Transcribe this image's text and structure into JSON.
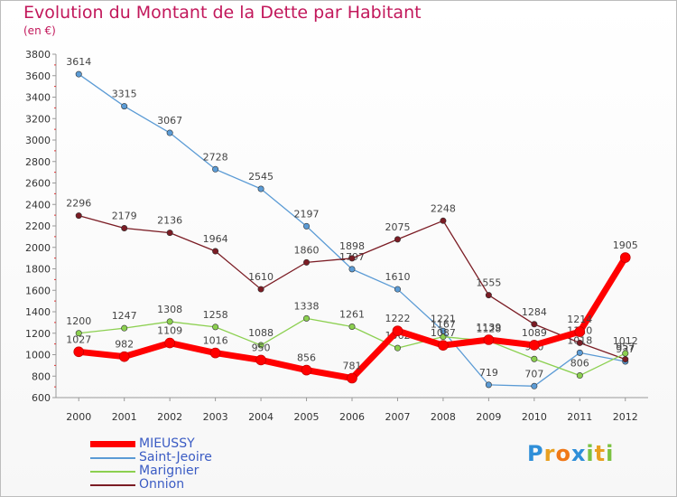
{
  "chart_data": {
    "type": "line",
    "title": "Evolution du Montant de la Dette par Habitant",
    "subtitle": "(en €)",
    "xlabel": "",
    "ylabel": "",
    "x": [
      "2000",
      "2001",
      "2002",
      "2003",
      "2004",
      "2005",
      "2006",
      "2007",
      "2008",
      "2009",
      "2010",
      "2011",
      "2012"
    ],
    "ylim": [
      600,
      3800
    ],
    "yticks": [
      600,
      800,
      1000,
      1200,
      1400,
      1600,
      1800,
      2000,
      2200,
      2400,
      2600,
      2800,
      3000,
      3200,
      3400,
      3600,
      3800
    ],
    "grid": false,
    "legend_position": "bottom-left",
    "series": [
      {
        "name": "Saint-Jeoire",
        "color": "#5b9bd5",
        "values": [
          3614,
          3315,
          3067,
          2728,
          2545,
          2197,
          1797,
          1610,
          1221,
          719,
          707,
          1018,
          937
        ]
      },
      {
        "name": "Onnion",
        "color": "#7b1c24",
        "values": [
          2296,
          2179,
          2136,
          1964,
          1610,
          1860,
          1898,
          2075,
          2248,
          1555,
          1284,
          1110,
          957
        ]
      },
      {
        "name": "Marignier",
        "color": "#8cd050",
        "values": [
          1200,
          1247,
          1308,
          1258,
          1088,
          1338,
          1261,
          1062,
          1167,
          1128,
          960,
          806,
          1012
        ]
      },
      {
        "name": "MIEUSSY",
        "color": "#ff0000",
        "values": [
          1027,
          982,
          1109,
          1016,
          950,
          856,
          781,
          1222,
          1087,
          1139,
          1089,
          1214,
          1905
        ]
      }
    ],
    "legend_order": [
      "MIEUSSY",
      "Saint-Jeoire",
      "Marignier",
      "Onnion"
    ]
  },
  "logo": {
    "letters": [
      "P",
      "r",
      "o",
      "x",
      "i",
      "t",
      "i"
    ],
    "colors": [
      "#2f8fd8",
      "#e8a020",
      "#f07818",
      "#2f8fd8",
      "#7cc242",
      "#e8a020",
      "#7cc242"
    ]
  },
  "colors": {
    "title": "#c2185b",
    "axis": "#999999",
    "tick_label": "#333333",
    "legend_label": "#3b5cc4"
  }
}
